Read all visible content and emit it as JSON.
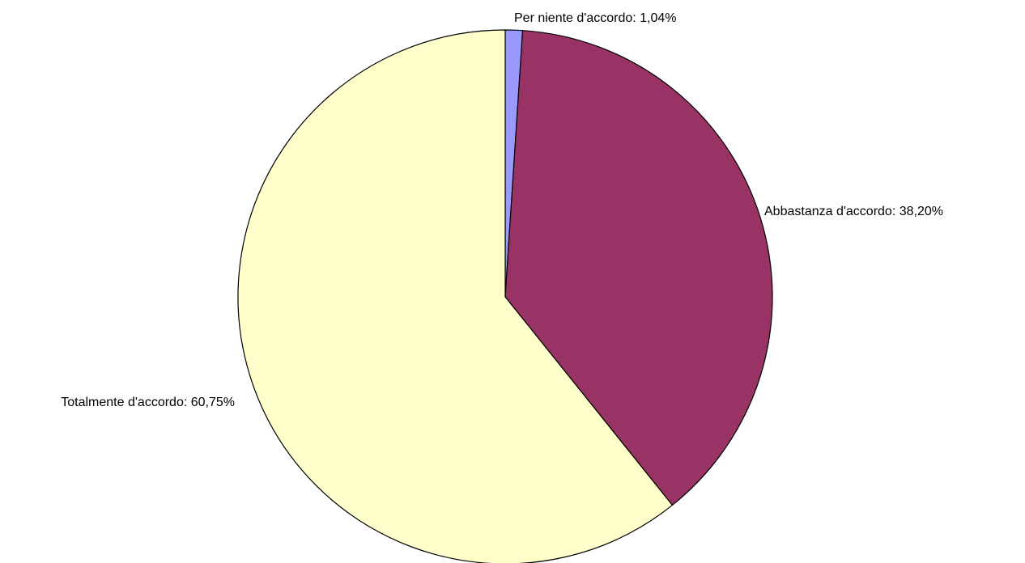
{
  "chart_data": {
    "type": "pie",
    "title": "",
    "start_angle_deg": 0,
    "direction": "clockwise",
    "slices": [
      {
        "label": "Per niente d'accordo",
        "value": 1.04,
        "display": "Per niente d'accordo: 1,04%",
        "color": "#9999ff"
      },
      {
        "label": "Abbastanza d'accordo",
        "value": 38.2,
        "display": "Abbastanza d'accordo: 38,20%",
        "color": "#993366"
      },
      {
        "label": "Totalmente d'accordo",
        "value": 60.75,
        "display": "Totalmente d'accordo: 60,75%",
        "color": "#ffffcc"
      }
    ],
    "legend": "none"
  }
}
